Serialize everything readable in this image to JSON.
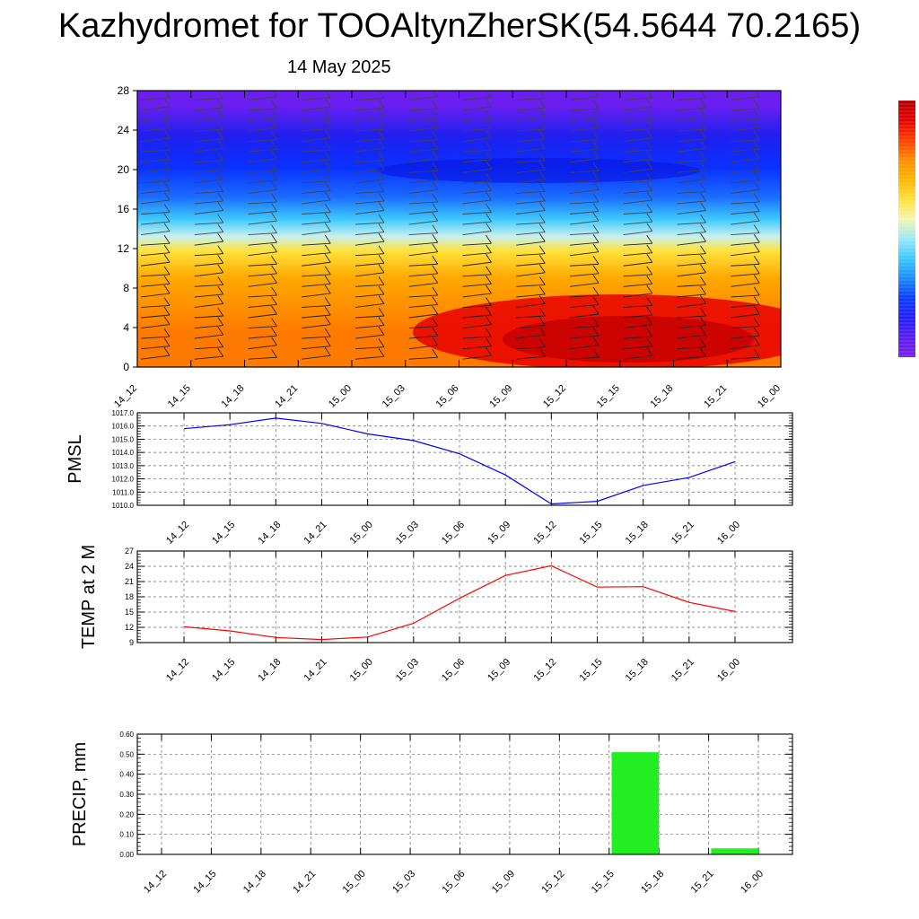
{
  "title": "Kazhydromet for TOOAltynZherSK(54.5644 70.2165)",
  "subtitle": "14 May 2025",
  "colors": {
    "pmsl_line": "#0000ff",
    "temp_line": "#ff0000",
    "precip_bar": "#22ee22",
    "colorbar": [
      "#7a1fe8",
      "#5a1cf0",
      "#2020ff",
      "#0a3cff",
      "#1a8cff",
      "#3cc8ff",
      "#9be8f5",
      "#f5f5b0",
      "#ffe23a",
      "#ffb400",
      "#ff8c00",
      "#ff3c00",
      "#e60000",
      "#b40000"
    ]
  },
  "chart_data": [
    {
      "type": "heatmap",
      "name": "cross-section",
      "x": [
        "14_12",
        "14_15",
        "14_18",
        "14_21",
        "15_00",
        "15_03",
        "15_06",
        "15_09",
        "15_12",
        "15_15",
        "15_18",
        "15_21",
        "16_00"
      ],
      "yticks": [
        0,
        4,
        8,
        12,
        16,
        20,
        24,
        28
      ],
      "ylim": [
        0,
        28
      ],
      "layers": [
        {
          "from": 0,
          "to": 7,
          "color": "#ff7a00"
        },
        {
          "from": 7,
          "to": 11,
          "color": "#ffa800"
        },
        {
          "from": 11,
          "to": 12.5,
          "color": "#ffe23a"
        },
        {
          "from": 12.5,
          "to": 14,
          "color": "#c8f0f0"
        },
        {
          "from": 14,
          "to": 16,
          "color": "#3cc8ff"
        },
        {
          "from": 16,
          "to": 18.5,
          "color": "#1a6cff"
        },
        {
          "from": 18.5,
          "to": 22,
          "color": "#0a30ff"
        },
        {
          "from": 22,
          "to": 25,
          "color": "#2020f0"
        },
        {
          "from": 25,
          "to": 28,
          "color": "#6a1ff0"
        }
      ]
    },
    {
      "type": "line",
      "ylabel": "PMSL",
      "x": [
        "14_12",
        "14_15",
        "14_18",
        "14_21",
        "15_00",
        "15_03",
        "15_06",
        "15_09",
        "15_12",
        "15_15",
        "15_18",
        "15_21",
        "16_00"
      ],
      "values": [
        1015.8,
        1016.1,
        1016.6,
        1016.2,
        1015.4,
        1014.9,
        1013.9,
        1012.3,
        1010.1,
        1010.3,
        1011.5,
        1012.1,
        1013.3
      ],
      "ylim": [
        1010.0,
        1017.0
      ],
      "yticks": [
        "1010.0",
        "1011.0",
        "1012.0",
        "1013.0",
        "1014.0",
        "1015.0",
        "1016.0",
        "1017.0"
      ],
      "grid": true
    },
    {
      "type": "line",
      "ylabel": "TEMP at 2 M",
      "x": [
        "14_12",
        "14_15",
        "14_18",
        "14_21",
        "15_00",
        "15_03",
        "15_06",
        "15_09",
        "15_12",
        "15_15",
        "15_18",
        "15_21",
        "16_00"
      ],
      "values": [
        12.1,
        11.3,
        10.0,
        9.6,
        10.1,
        12.8,
        17.7,
        22.2,
        24.1,
        19.9,
        20.0,
        16.9,
        15.1
      ],
      "ylim": [
        9,
        27
      ],
      "yticks": [
        "9",
        "12",
        "15",
        "18",
        "21",
        "24",
        "27"
      ],
      "grid": true
    },
    {
      "type": "bar",
      "ylabel": "PRECIP, mm",
      "categories": [
        "14_12",
        "14_15",
        "14_18",
        "14_21",
        "15_00",
        "15_03",
        "15_06",
        "15_09",
        "15_12",
        "15_15",
        "15_18",
        "15_21",
        "16_00"
      ],
      "values": [
        0,
        0,
        0,
        0,
        0,
        0,
        0,
        0,
        0,
        0,
        0.51,
        0,
        0.03
      ],
      "ylim": [
        0,
        0.6
      ],
      "yticks": [
        "0.00",
        "0.10",
        "0.20",
        "0.30",
        "0.40",
        "0.50",
        "0.60"
      ],
      "grid": true
    }
  ]
}
